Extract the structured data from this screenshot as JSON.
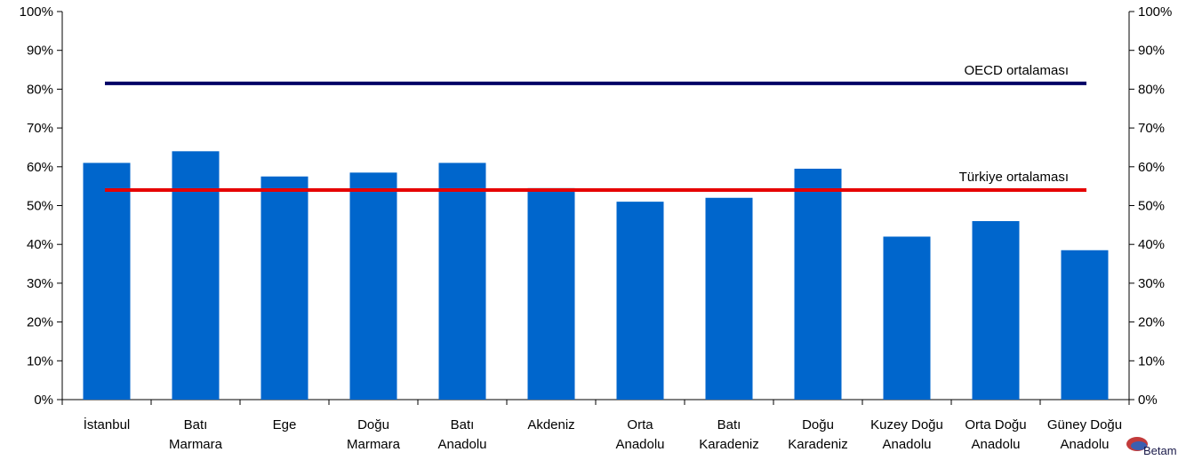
{
  "chart_data": {
    "type": "bar",
    "categories": [
      [
        "İstanbul"
      ],
      [
        "Batı",
        "Marmara"
      ],
      [
        "Ege"
      ],
      [
        "Doğu",
        "Marmara"
      ],
      [
        "Batı",
        "Anadolu"
      ],
      [
        "Akdeniz"
      ],
      [
        "Orta",
        "Anadolu"
      ],
      [
        "Batı",
        "Karadeniz"
      ],
      [
        "Doğu",
        "Karadeniz"
      ],
      [
        "Kuzey Doğu",
        "Anadolu"
      ],
      [
        "Orta Doğu",
        "Anadolu"
      ],
      [
        "Güney Doğu",
        "Anadolu"
      ]
    ],
    "values": [
      61,
      64,
      57.5,
      58.5,
      61,
      54.5,
      51,
      52,
      59.5,
      42,
      46,
      38.5
    ],
    "ylim": [
      0,
      100
    ],
    "yticks": [
      0,
      10,
      20,
      30,
      40,
      50,
      60,
      70,
      80,
      90,
      100
    ],
    "ytick_suffix": "%",
    "secondary_axis": true,
    "bar_color": "#0066cc",
    "reference_lines": [
      {
        "label": "OECD ortalaması",
        "value": 81.5,
        "color": "#000066"
      },
      {
        "label": "Türkiye ortalaması",
        "value": 54,
        "color": "#e60000"
      }
    ],
    "grid": false,
    "legend": "none"
  },
  "logo": {
    "text": "Betam"
  }
}
